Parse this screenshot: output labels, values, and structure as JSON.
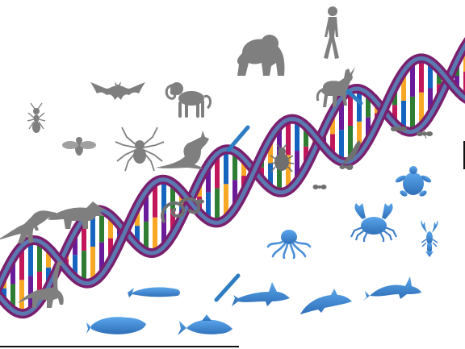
{
  "colors": {
    "background": "#ffffff",
    "backbone_outer": "#7a1f6e",
    "backbone_inner": "#5b79b0",
    "rung_palette": [
      "#c2185b",
      "#1565c0",
      "#2e7d32",
      "#f9a825",
      "#6a1b9a"
    ],
    "land_animals": "#7f7f7f",
    "sea_animals": "#4a8fd8",
    "insects": "#8a8a8a",
    "dna_fragments": "#2e7dc2",
    "baseline": "#111111"
  },
  "icons": {
    "land": [
      "ant-icon",
      "fly-icon",
      "spider-icon",
      "bat-icon",
      "monkey-icon",
      "gorilla-icon",
      "human-icon",
      "kangaroo-icon",
      "unicorn-icon",
      "t-rex-icon",
      "triceratops-icon",
      "brachiosaurus-icon"
    ],
    "on_helix": [
      "snake-icon",
      "beetle-icon",
      "small-lizard-icon",
      "ants-on-helix-icon"
    ],
    "sea": [
      "whale-icon",
      "platypus-icon",
      "shark-icon",
      "fish-icon",
      "dolphin-icon",
      "orca-icon",
      "octopus-icon",
      "crab-icon",
      "lobster-icon",
      "turtle-icon"
    ]
  }
}
